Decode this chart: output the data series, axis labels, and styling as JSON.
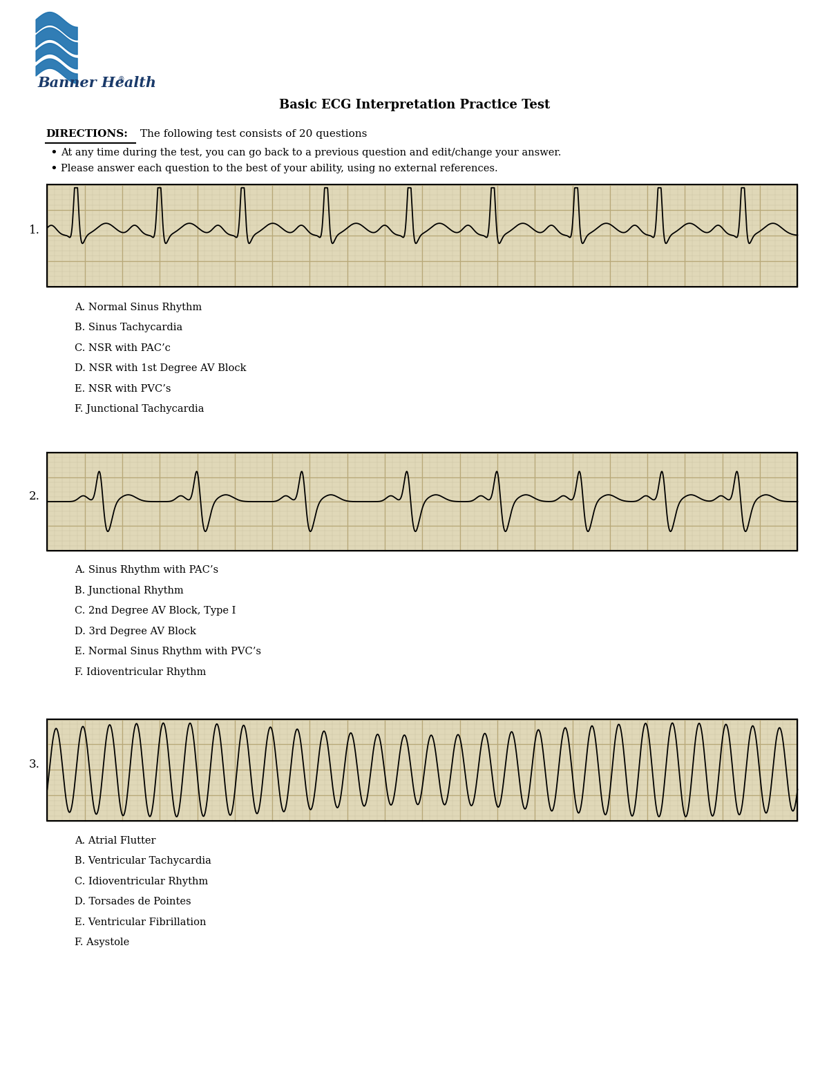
{
  "title": "Basic ECG Interpretation Practice Test",
  "directions_bold": "DIRECTIONS:",
  "directions_text": " The following test consists of 20 questions",
  "bullet1": "At any time during the test, you can go back to a previous question and edit/change your answer.",
  "bullet2": "Please answer each question to the best of your ability, using no external references.",
  "q1_num": "1.",
  "q1_answers": [
    "A. Normal Sinus Rhythm",
    "B. Sinus Tachycardia",
    "C. NSR with PAC’c",
    "D. NSR with 1st Degree AV Block",
    "E. NSR with PVC’s",
    "F. Junctional Tachycardia"
  ],
  "q2_num": "2.",
  "q2_answers": [
    "A. Sinus Rhythm with PAC’s",
    "B. Junctional Rhythm",
    "C. 2nd Degree AV Block, Type I",
    "D. 3rd Degree AV Block",
    "E. Normal Sinus Rhythm with PVC’s",
    "F. Idioventricular Rhythm"
  ],
  "q3_num": "3.",
  "q3_answers": [
    "A. Atrial Flutter",
    "B. Ventricular Tachycardia",
    "C. Idioventricular Rhythm",
    "D. Torsades de Pointes",
    "E. Ventricular Fibrillation",
    "F. Asystole"
  ],
  "banner_color": "#1a6fad",
  "banner_text_color": "#1a3a6a",
  "text_color": "#000000",
  "bg_color": "#ffffff",
  "ecg_bg": "#e0d8b8",
  "ecg_grid_major": "#b8a878",
  "ecg_grid_minor": "#ccc0a0"
}
